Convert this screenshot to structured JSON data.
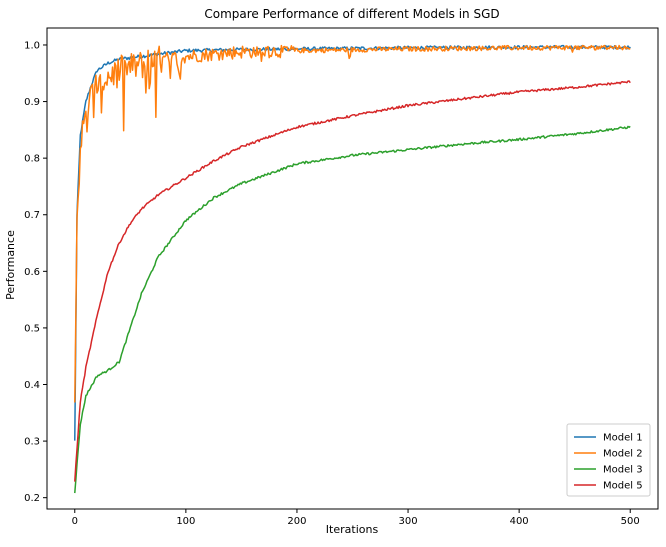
{
  "chart_data": {
    "type": "line",
    "title": "Compare Performance of different Models in SGD",
    "xlabel": "Iterations",
    "ylabel": "Performance",
    "xlim": [
      -25,
      525
    ],
    "ylim": [
      0.18,
      1.03
    ],
    "xticks": [
      0,
      100,
      200,
      300,
      400,
      500
    ],
    "yticks": [
      0.2,
      0.3,
      0.4,
      0.5,
      0.6,
      0.7,
      0.8,
      0.9,
      1.0
    ],
    "ytick_labels": [
      "0.2",
      "0.3",
      "0.4",
      "0.5",
      "0.6",
      "0.7",
      "0.8",
      "0.9",
      "1.0"
    ],
    "grid": false,
    "legend_position": "lower-right",
    "series": [
      {
        "name": "Model 1",
        "color": "#1f77b4",
        "noise": 0.003,
        "x": [
          0,
          2,
          5,
          10,
          15,
          20,
          30,
          40,
          60,
          80,
          100,
          150,
          200,
          300,
          400,
          500
        ],
        "values": [
          0.3,
          0.7,
          0.84,
          0.9,
          0.93,
          0.955,
          0.968,
          0.975,
          0.98,
          0.985,
          0.99,
          0.992,
          0.993,
          0.995,
          0.996,
          0.996
        ]
      },
      {
        "name": "Model 2",
        "color": "#ff7f0e",
        "noise": 0.012,
        "x": [
          0,
          2,
          5,
          10,
          15,
          20,
          30,
          40,
          60,
          80,
          100,
          150,
          200,
          300,
          400,
          500
        ],
        "values": [
          0.41,
          0.69,
          0.82,
          0.88,
          0.91,
          0.93,
          0.945,
          0.955,
          0.965,
          0.975,
          0.98,
          0.988,
          0.99,
          0.993,
          0.995,
          0.996
        ]
      },
      {
        "name": "Model 3",
        "color": "#2ca02c",
        "noise": 0.002,
        "x": [
          0,
          5,
          10,
          20,
          30,
          40,
          50,
          60,
          75,
          100,
          125,
          150,
          200,
          250,
          300,
          350,
          400,
          450,
          500
        ],
        "values": [
          0.21,
          0.33,
          0.38,
          0.415,
          0.425,
          0.44,
          0.5,
          0.56,
          0.625,
          0.69,
          0.73,
          0.755,
          0.79,
          0.805,
          0.815,
          0.825,
          0.833,
          0.843,
          0.855
        ]
      },
      {
        "name": "Model 5",
        "color": "#d62728",
        "noise": 0.002,
        "x": [
          0,
          5,
          10,
          20,
          30,
          40,
          50,
          60,
          75,
          100,
          125,
          150,
          200,
          250,
          300,
          350,
          400,
          450,
          500
        ],
        "values": [
          0.23,
          0.37,
          0.43,
          0.52,
          0.6,
          0.65,
          0.685,
          0.71,
          0.735,
          0.765,
          0.795,
          0.82,
          0.855,
          0.875,
          0.893,
          0.905,
          0.917,
          0.925,
          0.935
        ]
      }
    ]
  }
}
